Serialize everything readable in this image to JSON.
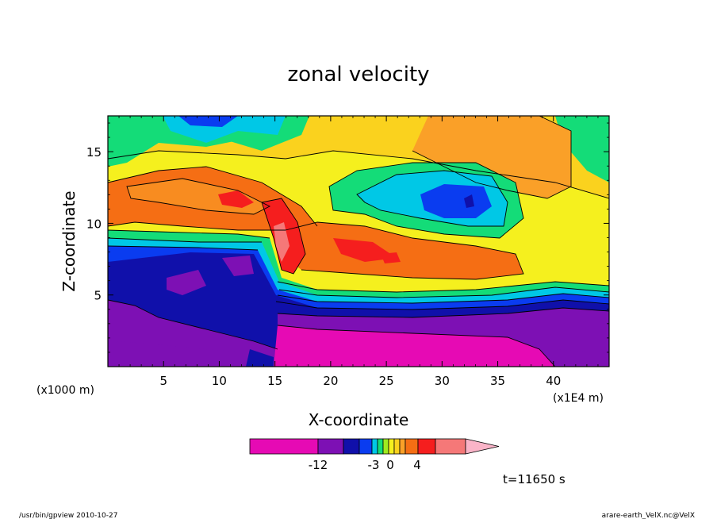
{
  "chart_data": {
    "type": "heatmap",
    "title": "zonal velocity",
    "xlabel": "X-coordinate",
    "ylabel": "Z-coordinate",
    "x_unit": "(x1E4 m)",
    "y_unit": "(x1000 m)",
    "xlim": [
      0,
      45
    ],
    "ylim": [
      0,
      17.5
    ],
    "x_ticks": [
      5,
      10,
      15,
      20,
      25,
      30,
      35,
      40
    ],
    "y_ticks": [
      5,
      10,
      15
    ],
    "colorbar": {
      "levels": [
        {
          "color": "#e60ab4"
        },
        {
          "color": "#7d10b4"
        },
        {
          "color": "#1010aa"
        },
        {
          "color": "#0a3cf0"
        },
        {
          "color": "#00c8e6"
        },
        {
          "color": "#14dc78"
        },
        {
          "color": "#a0eb1e"
        },
        {
          "color": "#f5f01e"
        },
        {
          "color": "#fad21e"
        },
        {
          "color": "#faa028"
        },
        {
          "color": "#f56e14"
        },
        {
          "color": "#f51e1e"
        },
        {
          "color": "#f57878"
        },
        {
          "color": "#fab4c8"
        }
      ],
      "tick_labels": [
        {
          "text": "-12"
        },
        {
          "text": "-3"
        },
        {
          "text": "0"
        },
        {
          "text": "4"
        }
      ]
    },
    "time_label": "t=11650 s"
  },
  "footer": {
    "left": "/usr/bin/gpview  2010-10-27",
    "right": "arare-earth_VelX.nc@VelX"
  }
}
